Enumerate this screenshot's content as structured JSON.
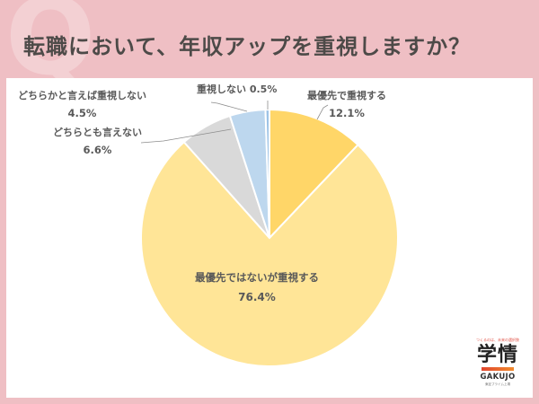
{
  "header": {
    "q_mark": "Q",
    "title": "転職において、年収アップを重視しますか？"
  },
  "colors": {
    "background": "#efbfc4",
    "panel": "#ffffff",
    "slice_top_priority": "#ffd668",
    "slice_important": "#ffe597",
    "slice_neutral": "#d9d9d9",
    "slice_rather_not": "#bdd7ee",
    "slice_not": "#9dc3e6"
  },
  "labels": {
    "top_priority": {
      "name": "最優先で重視する",
      "pct": "12.1%"
    },
    "important": {
      "name": "最優先ではないが重視する",
      "pct": "76.4%"
    },
    "neutral": {
      "name": "どちらとも言えない",
      "pct": "6.6%"
    },
    "rather_not": {
      "name": "どちらかと言えば重視しない",
      "pct": "4.5%"
    },
    "not": {
      "name": "重視しない 0.5%"
    }
  },
  "logo": {
    "tagline": "つくるのは、未来の選択肢",
    "kanji": "学情",
    "roman": "GAKUJO",
    "sub": "東証プライム上場"
  },
  "chart_data": {
    "type": "pie",
    "title": "転職において、年収アップを重視しますか？",
    "categories": [
      "最優先で重視する",
      "最優先ではないが重視する",
      "どちらとも言えない",
      "どちらかと言えば重視しない",
      "重視しない"
    ],
    "values": [
      12.1,
      76.4,
      6.6,
      4.5,
      0.5
    ],
    "unit": "%",
    "colors": [
      "#ffd668",
      "#ffe597",
      "#d9d9d9",
      "#bdd7ee",
      "#9dc3e6"
    ],
    "start_angle": "12 o'clock",
    "direction": "clockwise",
    "legend": "none (data labels with leader lines)"
  }
}
